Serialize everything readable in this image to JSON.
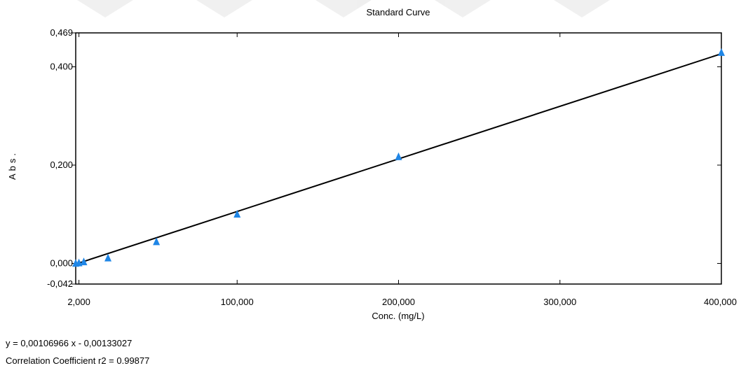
{
  "chart_data": {
    "type": "scatter",
    "title": "Standard Curve",
    "xlabel": "Conc. (mg/L)",
    "ylabel": "Abs.",
    "xlim": [
      0,
      400
    ],
    "ylim": [
      -0.042,
      0.469
    ],
    "x_ticks": [
      {
        "value": 2,
        "label": "2,000"
      },
      {
        "value": 100,
        "label": "100,000"
      },
      {
        "value": 200,
        "label": "200,000"
      },
      {
        "value": 300,
        "label": "300,000"
      },
      {
        "value": 400,
        "label": "400,000"
      }
    ],
    "y_ticks": [
      {
        "value": 0.469,
        "label": "0,469"
      },
      {
        "value": 0.4,
        "label": "0,400"
      },
      {
        "value": 0.2,
        "label": "0,200"
      },
      {
        "value": 0.0,
        "label": "0,000"
      },
      {
        "value": -0.042,
        "label": "-0,042"
      }
    ],
    "series": [
      {
        "marker": "triangle",
        "color": "#1f86e6",
        "x": [
          0,
          2,
          5,
          20,
          50,
          100,
          200,
          400
        ],
        "y": [
          0.001,
          0.002,
          0.004,
          0.012,
          0.045,
          0.101,
          0.218,
          0.43
        ]
      }
    ],
    "fit_line": {
      "slope": 0.00106966,
      "intercept": -0.00133027,
      "color": "#000000"
    },
    "grid": false
  },
  "footer": {
    "equation": "y = 0,00106966 x - 0,00133027",
    "correlation": "Correlation Coefficient r2 = 0.99877"
  }
}
